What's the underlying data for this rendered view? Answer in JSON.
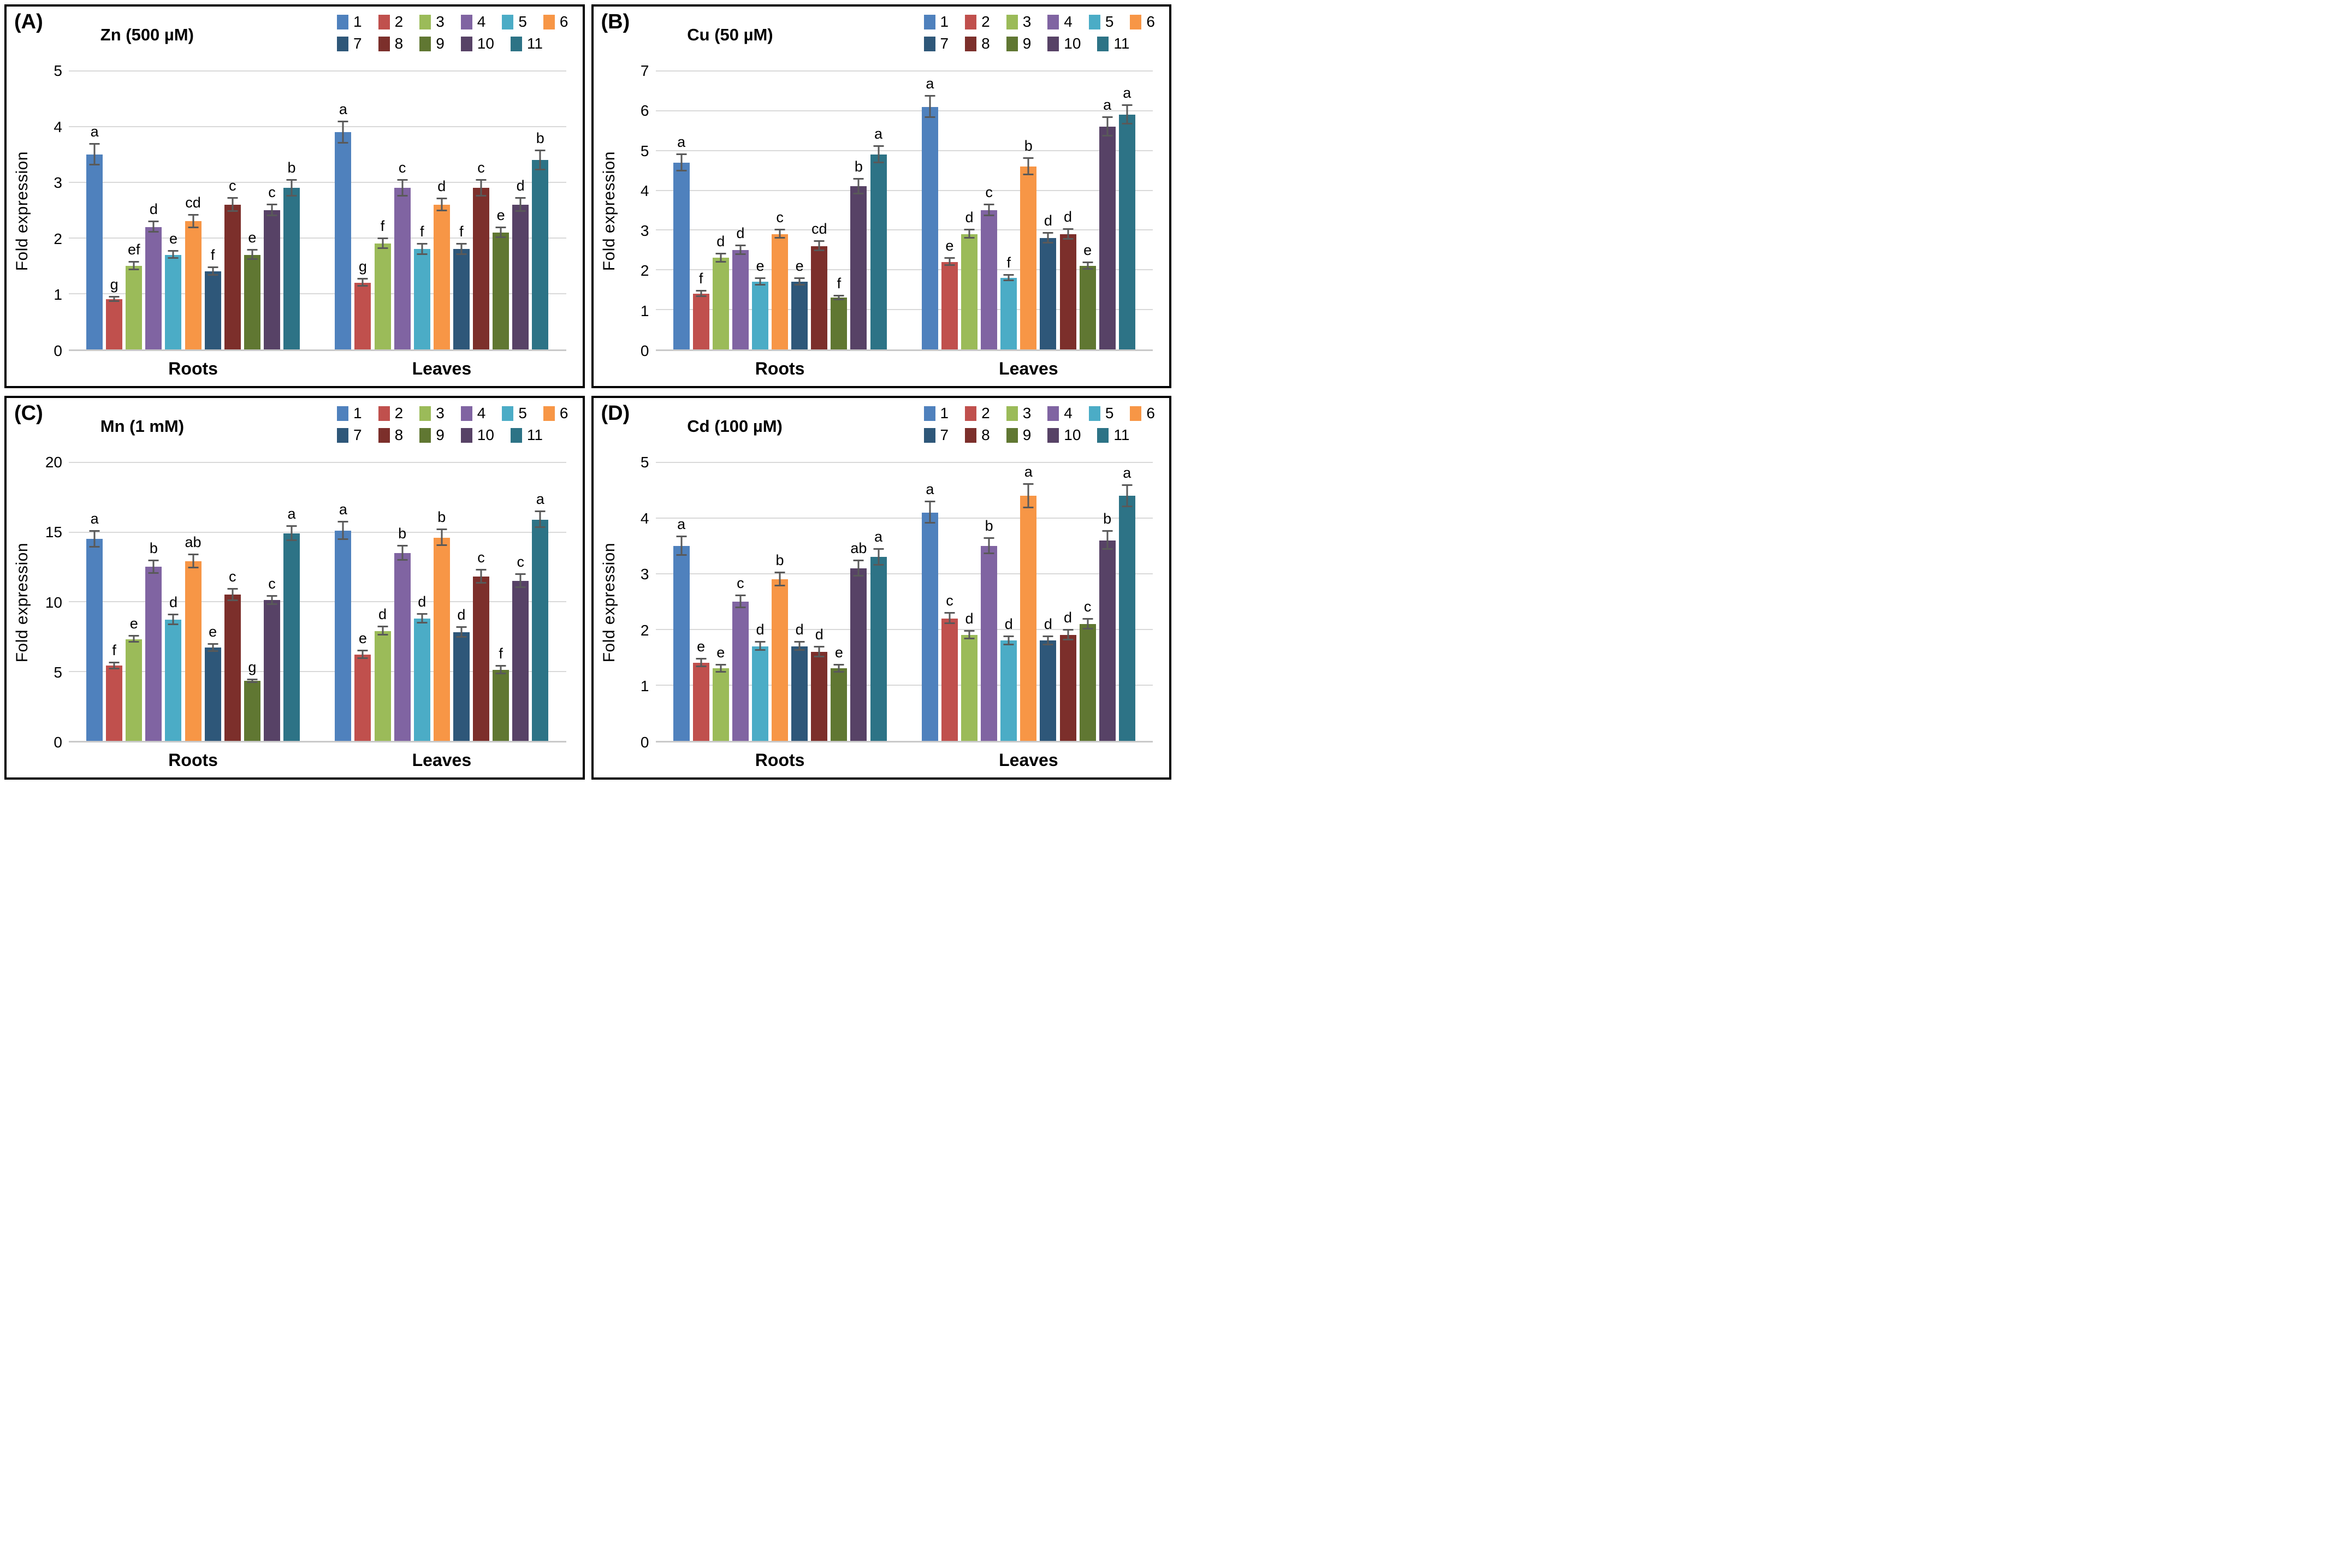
{
  "figure": {
    "description": "Four-panel grouped bar figure of fold expression under metal treatments",
    "group_labels": [
      "Roots",
      "Leaves"
    ],
    "legend_labels": [
      "1",
      "2",
      "3",
      "4",
      "5",
      "6",
      "7",
      "8",
      "9",
      "10",
      "11"
    ],
    "series_colors": [
      "#4F81BD",
      "#C0504D",
      "#9BBB59",
      "#8064A2",
      "#4BACC6",
      "#F79646",
      "#2E5779",
      "#7C2F2B",
      "#607732",
      "#574266",
      "#2D7386"
    ],
    "error_bar_color": "#595959",
    "gridline_color": "#D9D9D9"
  },
  "chart_data": [
    {
      "type": "bar",
      "panel_label": "(A)",
      "title": "Zn (500 µM)",
      "ylabel": "Fold expression",
      "ylim": [
        0,
        5
      ],
      "ytick_step": 1,
      "grid": true,
      "legend_position": "top-right",
      "categories": [
        "Roots",
        "Leaves"
      ],
      "series": [
        {
          "name": "1",
          "color": "#4F81BD",
          "values": [
            3.5,
            3.9
          ],
          "errors": [
            0.2,
            0.2
          ],
          "letters": [
            "a",
            "a"
          ]
        },
        {
          "name": "2",
          "color": "#C0504D",
          "values": [
            0.9,
            1.2
          ],
          "errors": [
            0.05,
            0.07
          ],
          "letters": [
            "g",
            "g"
          ]
        },
        {
          "name": "3",
          "color": "#9BBB59",
          "values": [
            1.5,
            1.9
          ],
          "errors": [
            0.08,
            0.1
          ],
          "letters": [
            "ef",
            "f"
          ]
        },
        {
          "name": "4",
          "color": "#8064A2",
          "values": [
            2.2,
            2.9
          ],
          "errors": [
            0.1,
            0.15
          ],
          "letters": [
            "d",
            "c"
          ]
        },
        {
          "name": "5",
          "color": "#4BACC6",
          "values": [
            1.7,
            1.8
          ],
          "errors": [
            0.07,
            0.1
          ],
          "letters": [
            "e",
            "f"
          ]
        },
        {
          "name": "6",
          "color": "#F79646",
          "values": [
            2.3,
            2.6
          ],
          "errors": [
            0.12,
            0.12
          ],
          "letters": [
            "cd",
            "d"
          ]
        },
        {
          "name": "7",
          "color": "#2E5779",
          "values": [
            1.4,
            1.8
          ],
          "errors": [
            0.08,
            0.1
          ],
          "letters": [
            "f",
            "f"
          ]
        },
        {
          "name": "8",
          "color": "#7C2F2B",
          "values": [
            2.6,
            2.9
          ],
          "errors": [
            0.13,
            0.15
          ],
          "letters": [
            "c",
            "c"
          ]
        },
        {
          "name": "9",
          "color": "#607732",
          "values": [
            1.7,
            2.1
          ],
          "errors": [
            0.09,
            0.1
          ],
          "letters": [
            "e",
            "e"
          ]
        },
        {
          "name": "10",
          "color": "#574266",
          "values": [
            2.5,
            2.6
          ],
          "errors": [
            0.11,
            0.13
          ],
          "letters": [
            "c",
            "d"
          ]
        },
        {
          "name": "11",
          "color": "#2D7386",
          "values": [
            2.9,
            3.4
          ],
          "errors": [
            0.15,
            0.18
          ],
          "letters": [
            "b",
            "b"
          ]
        }
      ]
    },
    {
      "type": "bar",
      "panel_label": "(B)",
      "title": "Cu (50 µM)",
      "ylabel": "Fold expression",
      "ylim": [
        0,
        7
      ],
      "ytick_step": 1,
      "grid": true,
      "legend_position": "top-right",
      "categories": [
        "Roots",
        "Leaves"
      ],
      "series": [
        {
          "name": "1",
          "color": "#4F81BD",
          "values": [
            4.7,
            6.1
          ],
          "errors": [
            0.22,
            0.28
          ],
          "letters": [
            "a",
            "a"
          ]
        },
        {
          "name": "2",
          "color": "#C0504D",
          "values": [
            1.4,
            2.2
          ],
          "errors": [
            0.08,
            0.1
          ],
          "letters": [
            "f",
            "e"
          ]
        },
        {
          "name": "3",
          "color": "#9BBB59",
          "values": [
            2.3,
            2.9
          ],
          "errors": [
            0.12,
            0.12
          ],
          "letters": [
            "d",
            "d"
          ]
        },
        {
          "name": "4",
          "color": "#8064A2",
          "values": [
            2.5,
            3.5
          ],
          "errors": [
            0.12,
            0.15
          ],
          "letters": [
            "d",
            "c"
          ]
        },
        {
          "name": "5",
          "color": "#4BACC6",
          "values": [
            1.7,
            1.8
          ],
          "errors": [
            0.1,
            0.08
          ],
          "letters": [
            "e",
            "f"
          ]
        },
        {
          "name": "6",
          "color": "#F79646",
          "values": [
            2.9,
            4.6
          ],
          "errors": [
            0.12,
            0.22
          ],
          "letters": [
            "c",
            "b"
          ]
        },
        {
          "name": "7",
          "color": "#2E5779",
          "values": [
            1.7,
            2.8
          ],
          "errors": [
            0.1,
            0.14
          ],
          "letters": [
            "e",
            "d"
          ]
        },
        {
          "name": "8",
          "color": "#7C2F2B",
          "values": [
            2.6,
            2.9
          ],
          "errors": [
            0.13,
            0.14
          ],
          "letters": [
            "cd",
            "d"
          ]
        },
        {
          "name": "9",
          "color": "#607732",
          "values": [
            1.3,
            2.1
          ],
          "errors": [
            0.06,
            0.1
          ],
          "letters": [
            "f",
            "e"
          ]
        },
        {
          "name": "10",
          "color": "#574266",
          "values": [
            4.1,
            5.6
          ],
          "errors": [
            0.2,
            0.25
          ],
          "letters": [
            "b",
            "a"
          ]
        },
        {
          "name": "11",
          "color": "#2D7386",
          "values": [
            4.9,
            5.9
          ],
          "errors": [
            0.22,
            0.25
          ],
          "letters": [
            "a",
            "a"
          ]
        }
      ]
    },
    {
      "type": "bar",
      "panel_label": "(C)",
      "title": "Mn (1 mM)",
      "ylabel": "Fold expression",
      "ylim": [
        0,
        20
      ],
      "ytick_step": 5,
      "grid": true,
      "legend_position": "top-right",
      "categories": [
        "Roots",
        "Leaves"
      ],
      "series": [
        {
          "name": "1",
          "color": "#4F81BD",
          "values": [
            14.5,
            15.1
          ],
          "errors": [
            0.6,
            0.65
          ],
          "letters": [
            "a",
            "a"
          ]
        },
        {
          "name": "2",
          "color": "#C0504D",
          "values": [
            5.4,
            6.2
          ],
          "errors": [
            0.25,
            0.3
          ],
          "letters": [
            "f",
            "e"
          ]
        },
        {
          "name": "3",
          "color": "#9BBB59",
          "values": [
            7.3,
            7.9
          ],
          "errors": [
            0.25,
            0.35
          ],
          "letters": [
            "e",
            "d"
          ]
        },
        {
          "name": "4",
          "color": "#8064A2",
          "values": [
            12.5,
            13.5
          ],
          "errors": [
            0.5,
            0.55
          ],
          "letters": [
            "b",
            "b"
          ]
        },
        {
          "name": "5",
          "color": "#4BACC6",
          "values": [
            8.7,
            8.8
          ],
          "errors": [
            0.4,
            0.35
          ],
          "letters": [
            "d",
            "d"
          ]
        },
        {
          "name": "6",
          "color": "#F79646",
          "values": [
            12.9,
            14.6
          ],
          "errors": [
            0.5,
            0.6
          ],
          "letters": [
            "ab",
            "b"
          ]
        },
        {
          "name": "7",
          "color": "#2E5779",
          "values": [
            6.7,
            7.8
          ],
          "errors": [
            0.3,
            0.4
          ],
          "letters": [
            "e",
            "d"
          ]
        },
        {
          "name": "8",
          "color": "#7C2F2B",
          "values": [
            10.5,
            11.8
          ],
          "errors": [
            0.45,
            0.5
          ],
          "letters": [
            "c",
            "c"
          ]
        },
        {
          "name": "9",
          "color": "#607732",
          "values": [
            4.3,
            5.1
          ],
          "errors": [
            0.15,
            0.3
          ],
          "letters": [
            "g",
            "f"
          ]
        },
        {
          "name": "10",
          "color": "#574266",
          "values": [
            10.1,
            11.5
          ],
          "errors": [
            0.35,
            0.5
          ],
          "letters": [
            "c",
            "c"
          ]
        },
        {
          "name": "11",
          "color": "#2D7386",
          "values": [
            14.9,
            15.9
          ],
          "errors": [
            0.55,
            0.6
          ],
          "letters": [
            "a",
            "a"
          ]
        }
      ]
    },
    {
      "type": "bar",
      "panel_label": "(D)",
      "title": "Cd (100 µM)",
      "ylabel": "Fold expression",
      "ylim": [
        0,
        5
      ],
      "ytick_step": 1,
      "grid": true,
      "legend_position": "top-right",
      "categories": [
        "Roots",
        "Leaves"
      ],
      "series": [
        {
          "name": "1",
          "color": "#4F81BD",
          "values": [
            3.5,
            4.1
          ],
          "errors": [
            0.18,
            0.2
          ],
          "letters": [
            "a",
            "a"
          ]
        },
        {
          "name": "2",
          "color": "#C0504D",
          "values": [
            1.4,
            2.2
          ],
          "errors": [
            0.08,
            0.1
          ],
          "letters": [
            "e",
            "c"
          ]
        },
        {
          "name": "3",
          "color": "#9BBB59",
          "values": [
            1.3,
            1.9
          ],
          "errors": [
            0.07,
            0.08
          ],
          "letters": [
            "e",
            "d"
          ]
        },
        {
          "name": "4",
          "color": "#8064A2",
          "values": [
            2.5,
            3.5
          ],
          "errors": [
            0.12,
            0.15
          ],
          "letters": [
            "c",
            "b"
          ]
        },
        {
          "name": "5",
          "color": "#4BACC6",
          "values": [
            1.7,
            1.8
          ],
          "errors": [
            0.08,
            0.08
          ],
          "letters": [
            "d",
            "d"
          ]
        },
        {
          "name": "6",
          "color": "#F79646",
          "values": [
            2.9,
            4.4
          ],
          "errors": [
            0.13,
            0.22
          ],
          "letters": [
            "b",
            "a"
          ]
        },
        {
          "name": "7",
          "color": "#2E5779",
          "values": [
            1.7,
            1.8
          ],
          "errors": [
            0.08,
            0.08
          ],
          "letters": [
            "d",
            "d"
          ]
        },
        {
          "name": "8",
          "color": "#7C2F2B",
          "values": [
            1.6,
            1.9
          ],
          "errors": [
            0.1,
            0.1
          ],
          "letters": [
            "d",
            "d"
          ]
        },
        {
          "name": "9",
          "color": "#607732",
          "values": [
            1.3,
            2.1
          ],
          "errors": [
            0.07,
            0.1
          ],
          "letters": [
            "e",
            "c"
          ]
        },
        {
          "name": "10",
          "color": "#574266",
          "values": [
            3.1,
            3.6
          ],
          "errors": [
            0.15,
            0.17
          ],
          "letters": [
            "ab",
            "b"
          ]
        },
        {
          "name": "11",
          "color": "#2D7386",
          "values": [
            3.3,
            4.4
          ],
          "errors": [
            0.15,
            0.2
          ],
          "letters": [
            "a",
            "a"
          ]
        }
      ]
    }
  ]
}
